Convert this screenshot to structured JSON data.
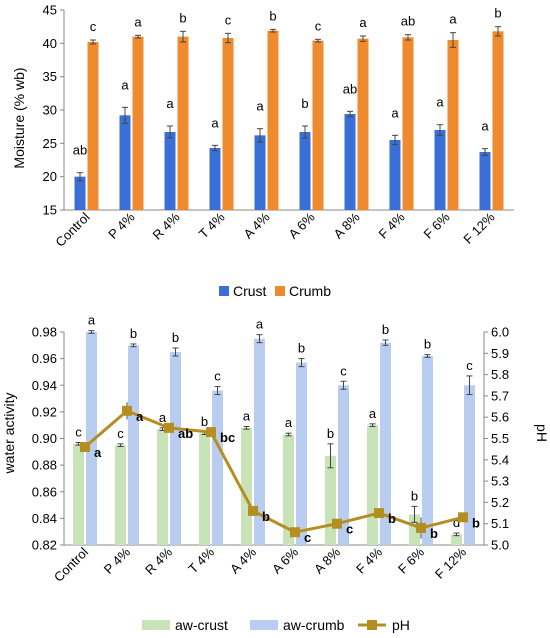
{
  "chart_data": [
    {
      "type": "bar",
      "categories": [
        "Control",
        "P 4%",
        "R 4%",
        "T 4%",
        "A 4%",
        "A 6%",
        "A 8%",
        "F 4%",
        "F 6%",
        "F 12%"
      ],
      "ylabel": "Moisture (% wb)",
      "ylim": [
        15,
        45
      ],
      "yticks": [
        15,
        20,
        25,
        30,
        35,
        40,
        45
      ],
      "grid": false,
      "legend_position": "bottom",
      "series": [
        {
          "name": "Crust",
          "color": "#3a6fd8",
          "values": [
            20.0,
            29.2,
            26.7,
            24.3,
            26.2,
            26.7,
            29.4,
            25.5,
            27.0,
            23.7
          ],
          "errors": [
            0.6,
            1.2,
            0.9,
            0.4,
            1.0,
            0.9,
            0.4,
            0.7,
            0.8,
            0.5
          ],
          "labels": [
            "ab",
            "a",
            "a",
            "a",
            "a",
            "b",
            "ab",
            "a",
            "a",
            "a"
          ]
        },
        {
          "name": "Crumb",
          "color": "#f08a2e",
          "values": [
            40.2,
            41.0,
            41.0,
            40.8,
            41.9,
            40.4,
            40.7,
            40.9,
            40.5,
            41.8
          ],
          "errors": [
            0.3,
            0.2,
            0.8,
            0.7,
            0.2,
            0.2,
            0.4,
            0.4,
            1.1,
            0.7
          ],
          "labels": [
            "c",
            "a",
            "b",
            "c",
            "b",
            "c",
            "a",
            "ab",
            "a",
            "b"
          ]
        }
      ]
    },
    {
      "type": "bar",
      "categories": [
        "Control",
        "P 4%",
        "R 4%",
        "T 4%",
        "A 4%",
        "A 6%",
        "A 8%",
        "F 4%",
        "F 6%",
        "F 12%"
      ],
      "ylabel": "water activity",
      "ylim": [
        0.82,
        0.98
      ],
      "yticks": [
        0.82,
        0.84,
        0.86,
        0.88,
        0.9,
        0.92,
        0.94,
        0.96,
        0.98
      ],
      "y2label": "pH",
      "y2lim": [
        5.0,
        6.0
      ],
      "y2ticks": [
        5.0,
        5.1,
        5.2,
        5.3,
        5.4,
        5.5,
        5.6,
        5.7,
        5.8,
        5.9,
        6.0
      ],
      "grid": false,
      "legend_position": "bottom",
      "series": [
        {
          "name": "aw-crust",
          "type": "bar",
          "color": "#c9e3b8",
          "values": [
            0.896,
            0.895,
            0.907,
            0.904,
            0.908,
            0.903,
            0.887,
            0.91,
            0.843,
            0.828
          ],
          "errors": [
            0.001,
            0.001,
            0.001,
            0.001,
            0.001,
            0.001,
            0.009,
            0.001,
            0.006,
            0.001
          ],
          "labels": [
            "c",
            "c",
            "a",
            "b",
            "a",
            "a",
            "b",
            "a",
            "b",
            "d"
          ]
        },
        {
          "name": "aw-crumb",
          "type": "bar",
          "color": "#b9cdf0",
          "values": [
            0.98,
            0.97,
            0.965,
            0.936,
            0.975,
            0.957,
            0.94,
            0.972,
            0.962,
            0.94
          ],
          "errors": [
            0.001,
            0.001,
            0.003,
            0.003,
            0.003,
            0.003,
            0.003,
            0.002,
            0.001,
            0.007
          ],
          "labels": [
            "a",
            "b",
            "b",
            "c",
            "a",
            "b",
            "c",
            "b",
            "b",
            "c"
          ]
        },
        {
          "name": "pH",
          "type": "line",
          "axis": "right",
          "color": "#b58e22",
          "values": [
            5.46,
            5.63,
            5.55,
            5.53,
            5.16,
            5.06,
            5.1,
            5.15,
            5.08,
            5.13
          ],
          "errors": [
            0.01,
            0.04,
            0.01,
            0.01,
            0.02,
            0.02,
            0.01,
            0.01,
            0.05,
            0.01
          ],
          "labels": [
            "a",
            "a",
            "ab",
            "bc",
            "b",
            "c",
            "c",
            "b",
            "b",
            "b"
          ]
        }
      ]
    }
  ]
}
